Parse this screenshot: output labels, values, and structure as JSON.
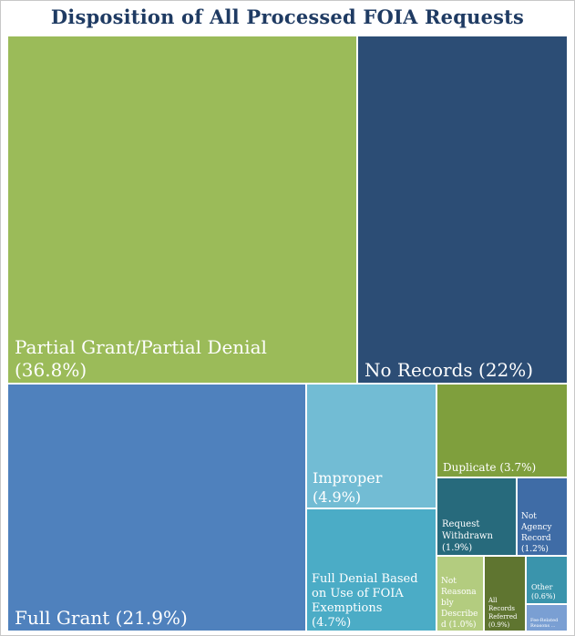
{
  "chart_data": {
    "type": "treemap",
    "title": "Disposition of All Processed FOIA Requests",
    "unit": "%",
    "items": [
      {
        "label": "Partial Grant/Partial Denial",
        "value": 36.8,
        "value_text": "(36.8%)",
        "color": "#9bbb59"
      },
      {
        "label": "No Records",
        "value": 22,
        "value_text": "(22%)",
        "color": "#2c4d75"
      },
      {
        "label": "Full Grant",
        "value": 21.9,
        "value_text": "(21.9%)",
        "color": "#4f81bd"
      },
      {
        "label": "Improper",
        "value": 4.9,
        "value_text": "(4.9%)",
        "color": "#72bcd4"
      },
      {
        "label": "Full Denial Based on Use of FOIA Exemptions",
        "value": 4.7,
        "value_text": "(4.7%)",
        "color": "#4bacc6"
      },
      {
        "label": "Duplicate",
        "value": 3.7,
        "value_text": "(3.7%)",
        "color": "#7f9f3d"
      },
      {
        "label": "Request Withdrawn",
        "value": 1.9,
        "value_text": "(1.9%)",
        "color": "#276a7c"
      },
      {
        "label": "Not Agency Record",
        "value": 1.2,
        "value_text": "(1.2%)",
        "color": "#3f6ca6"
      },
      {
        "label": "Not Reasonably Described",
        "value": 1.0,
        "value_text": "(1.0%)",
        "color": "#b3cc7f"
      },
      {
        "label": "All Records Referred",
        "value": 0.9,
        "value_text": "(0.9%)",
        "color": "#5f7530"
      },
      {
        "label": "Other",
        "value": 0.6,
        "value_text": "(0.6%)",
        "color": "#3a94ac"
      },
      {
        "label": "Fee-Related Reasons ...",
        "value": 0.3,
        "value_text": "",
        "color": "#7a9fd3"
      }
    ]
  }
}
